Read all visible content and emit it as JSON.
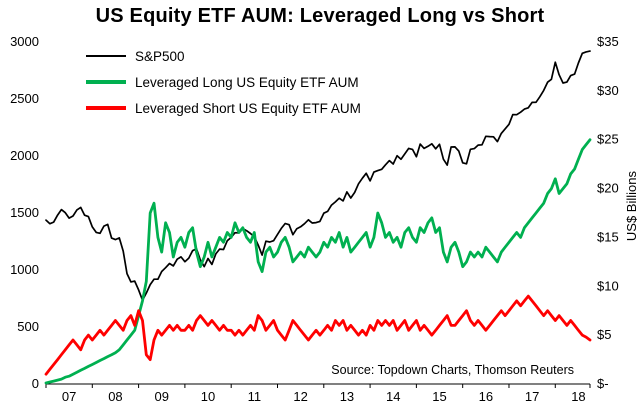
{
  "chart_data": {
    "type": "line",
    "title": "US Equity ETF AUM: Leveraged Long vs Short",
    "source_note": "Source: Topdown Charts, Thomson Reuters",
    "x_tick_labels": [
      "07",
      "08",
      "09",
      "10",
      "11",
      "12",
      "13",
      "14",
      "15",
      "16",
      "17",
      "18"
    ],
    "x_frequency": "monthly",
    "x_start_year": 2007,
    "left_axis": {
      "min": 0,
      "max": 3000,
      "ticks": [
        0,
        500,
        1000,
        1500,
        2000,
        2500,
        3000
      ]
    },
    "right_axis": {
      "min": 0,
      "max": 35,
      "tick_step": 5,
      "tick_labels": [
        "$-",
        "$5",
        "$10",
        "$15",
        "$20",
        "$25",
        "$30",
        "$35"
      ],
      "title": "US$ Billions"
    },
    "grid": false,
    "legend_position": "top-left-inside",
    "series": [
      {
        "name": "S&P500",
        "color": "#000000",
        "axis": "left",
        "line_width": 1.7,
        "values": [
          1438,
          1406,
          1420,
          1482,
          1530,
          1503,
          1455,
          1474,
          1527,
          1549,
          1481,
          1468,
          1378,
          1330,
          1322,
          1385,
          1400,
          1280,
          1267,
          1282,
          1166,
          968,
          896,
          903,
          825,
          735,
          797,
          872,
          919,
          919,
          987,
          1020,
          1057,
          1036,
          1095,
          1115,
          1073,
          1104,
          1169,
          1186,
          1089,
          1030,
          1101,
          1049,
          1141,
          1183,
          1180,
          1257,
          1286,
          1327,
          1325,
          1363,
          1345,
          1320,
          1292,
          1218,
          1131,
          1253,
          1246,
          1257,
          1312,
          1365,
          1408,
          1397,
          1310,
          1362,
          1379,
          1406,
          1440,
          1412,
          1416,
          1426,
          1498,
          1514,
          1569,
          1597,
          1630,
          1606,
          1685,
          1632,
          1681,
          1756,
          1805,
          1848,
          1782,
          1859,
          1872,
          1883,
          1923,
          1960,
          1930,
          2003,
          1972,
          2018,
          2067,
          2058,
          1994,
          2104,
          2067,
          2085,
          2107,
          2063,
          2103,
          1972,
          1920,
          2079,
          2080,
          2043,
          1940,
          1932,
          2059,
          2065,
          2096,
          2098,
          2173,
          2170,
          2168,
          2126,
          2198,
          2238,
          2278,
          2363,
          2362,
          2384,
          2411,
          2423,
          2470,
          2471,
          2519,
          2575,
          2647,
          2673,
          2823,
          2713,
          2640,
          2648,
          2705,
          2718,
          2816,
          2901,
          2913,
          2920
        ]
      },
      {
        "name": "Leveraged Long US Equity ETF AUM",
        "color": "#00B050",
        "axis": "right",
        "line_width": 2.8,
        "values": [
          0.1,
          0.2,
          0.3,
          0.4,
          0.5,
          0.7,
          0.8,
          1.0,
          1.2,
          1.4,
          1.6,
          1.8,
          2.0,
          2.2,
          2.4,
          2.6,
          2.8,
          3.0,
          3.2,
          3.5,
          4.0,
          4.5,
          5.0,
          5.5,
          7.0,
          8.5,
          10.5,
          17.5,
          18.5,
          15.0,
          13.5,
          16.5,
          15.5,
          13.0,
          14.5,
          15.0,
          14.0,
          15.5,
          16.0,
          13.5,
          12.0,
          13.0,
          14.5,
          13.0,
          14.0,
          15.0,
          14.5,
          15.5,
          15.0,
          16.5,
          15.5,
          16.0,
          15.0,
          14.5,
          15.5,
          12.5,
          11.5,
          13.5,
          14.0,
          13.0,
          13.5,
          14.5,
          15.0,
          14.0,
          12.5,
          13.0,
          13.5,
          13.0,
          14.0,
          13.5,
          13.0,
          13.5,
          14.5,
          14.0,
          15.0,
          14.5,
          15.5,
          14.0,
          15.0,
          13.5,
          14.0,
          14.5,
          15.0,
          15.5,
          14.0,
          15.0,
          17.5,
          16.5,
          15.0,
          15.5,
          14.5,
          15.0,
          14.0,
          15.5,
          16.0,
          15.0,
          14.5,
          16.0,
          15.5,
          16.5,
          17.0,
          15.5,
          16.0,
          13.5,
          12.5,
          14.0,
          14.5,
          13.5,
          12.0,
          12.5,
          13.5,
          13.0,
          13.5,
          13.0,
          14.0,
          13.5,
          13.0,
          12.5,
          13.5,
          14.0,
          14.5,
          15.0,
          15.5,
          15.0,
          16.0,
          16.5,
          17.0,
          17.5,
          18.0,
          18.5,
          19.5,
          20.0,
          21.0,
          19.5,
          20.0,
          20.5,
          21.5,
          22.0,
          23.0,
          24.0,
          24.5,
          25.0
        ]
      },
      {
        "name": "Leveraged Short US Equity ETF AUM",
        "color": "#FF0000",
        "axis": "right",
        "line_width": 2.8,
        "values": [
          1.0,
          1.5,
          2.0,
          2.5,
          3.0,
          3.5,
          4.0,
          4.5,
          4.0,
          3.5,
          4.5,
          5.0,
          4.5,
          5.0,
          5.5,
          5.0,
          5.5,
          6.0,
          6.5,
          6.0,
          5.5,
          6.5,
          7.0,
          6.0,
          7.5,
          6.5,
          3.0,
          2.5,
          4.5,
          5.5,
          5.0,
          5.5,
          6.0,
          5.5,
          6.0,
          5.5,
          5.5,
          6.0,
          5.5,
          6.5,
          7.0,
          6.5,
          6.0,
          6.5,
          6.0,
          5.5,
          6.0,
          5.5,
          5.5,
          5.0,
          5.5,
          5.0,
          5.5,
          6.0,
          5.5,
          7.0,
          6.5,
          5.5,
          6.0,
          6.5,
          5.5,
          5.0,
          4.5,
          5.5,
          6.5,
          6.0,
          5.5,
          5.0,
          4.5,
          5.0,
          5.5,
          5.0,
          5.5,
          6.0,
          5.5,
          6.5,
          6.0,
          6.5,
          5.5,
          6.0,
          5.5,
          5.0,
          5.5,
          5.0,
          6.0,
          5.5,
          6.5,
          6.0,
          6.5,
          6.0,
          6.5,
          5.5,
          6.0,
          6.5,
          5.5,
          6.0,
          6.5,
          5.5,
          6.0,
          5.5,
          5.0,
          5.5,
          6.0,
          6.5,
          7.0,
          6.0,
          6.0,
          6.5,
          7.0,
          7.5,
          6.5,
          6.0,
          6.5,
          6.0,
          5.5,
          6.0,
          6.5,
          7.0,
          7.5,
          7.0,
          7.5,
          8.0,
          8.5,
          8.0,
          8.5,
          9.0,
          8.5,
          8.0,
          7.5,
          7.0,
          7.5,
          7.0,
          6.5,
          7.0,
          6.5,
          6.0,
          6.5,
          6.0,
          5.5,
          5.0,
          4.8,
          4.5
        ]
      }
    ]
  }
}
